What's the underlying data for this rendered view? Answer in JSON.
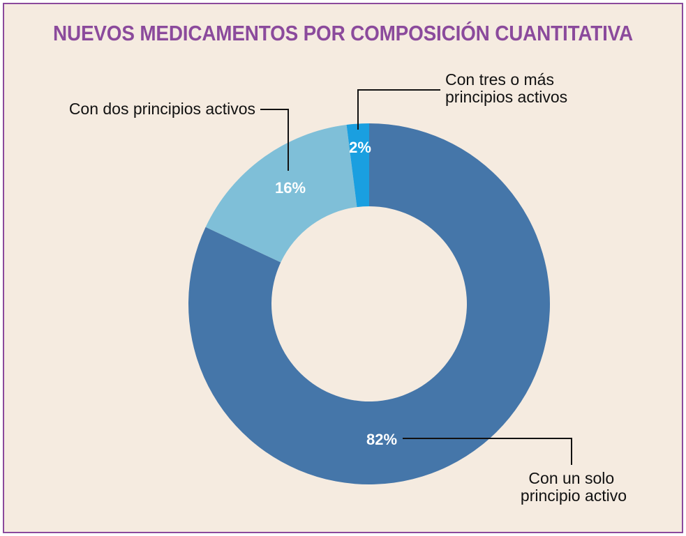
{
  "chart_data": {
    "type": "pie",
    "title": "NUEVOS MEDICAMENTOS POR COMPOSICIÓN CUANTITATIVA",
    "slices": [
      {
        "label_lines": [
          "Con un solo",
          "principio activo"
        ],
        "value": 82,
        "value_label": "82%",
        "color": "#4576a9"
      },
      {
        "label_lines": [
          "Con dos principios activos"
        ],
        "value": 16,
        "value_label": "16%",
        "color": "#7fbfd8"
      },
      {
        "label_lines": [
          "Con tres o más",
          "principios activos"
        ],
        "value": 2,
        "value_label": "2%",
        "color": "#1a9fe0"
      }
    ],
    "start": "top",
    "direction": "clockwise"
  },
  "colors": {
    "border": "#8b4a9c",
    "title": "#8b4a9c",
    "background": "#f5ebe0",
    "leader_lines": "#111111"
  }
}
